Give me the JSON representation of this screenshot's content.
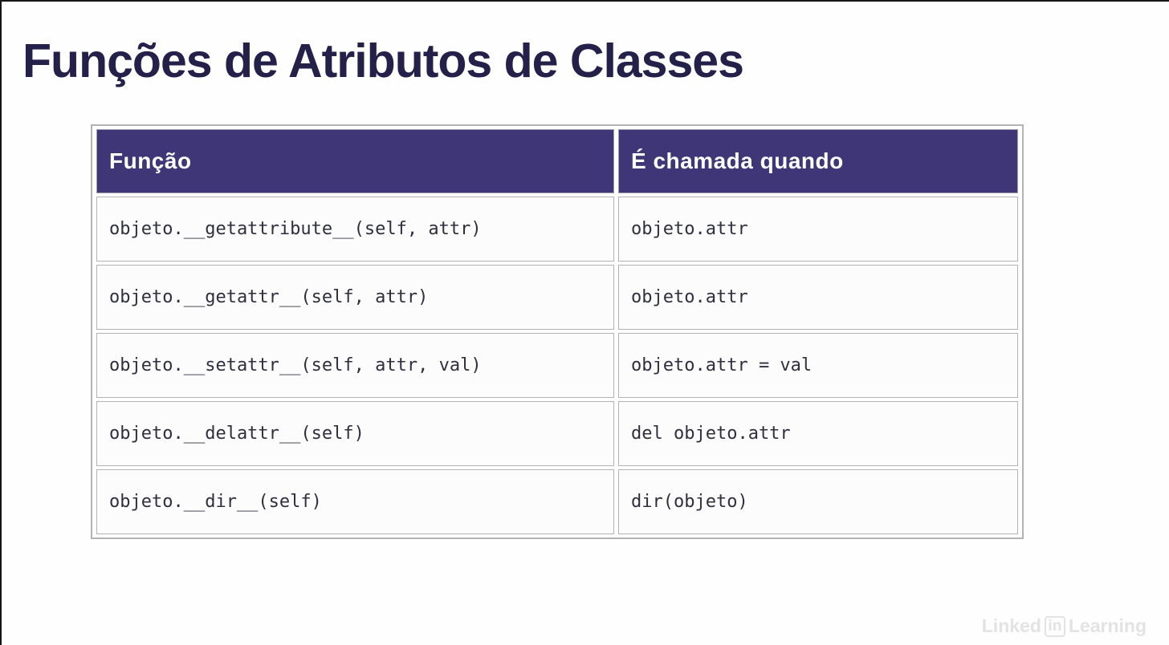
{
  "title": "Funções de Atributos de Classes",
  "table": {
    "headers": [
      "Função",
      "É chamada quando"
    ],
    "rows": [
      [
        "objeto.__getattribute__(self, attr)",
        "objeto.attr"
      ],
      [
        "objeto.__getattr__(self, attr)",
        "objeto.attr"
      ],
      [
        "objeto.__setattr__(self, attr, val)",
        "objeto.attr = val"
      ],
      [
        "objeto.__delattr__(self)",
        "del objeto.attr"
      ],
      [
        "objeto.__dir__(self)",
        "dir(objeto)"
      ]
    ]
  },
  "watermark": {
    "linked": "Linked",
    "in": "in",
    "learning": "Learning"
  },
  "colors": {
    "header_bg": "#3e3677",
    "title_text": "#23204a",
    "cell_text": "#2f2f3f",
    "table_border": "#b3b3b3",
    "watermark": "#e3e3e3"
  }
}
